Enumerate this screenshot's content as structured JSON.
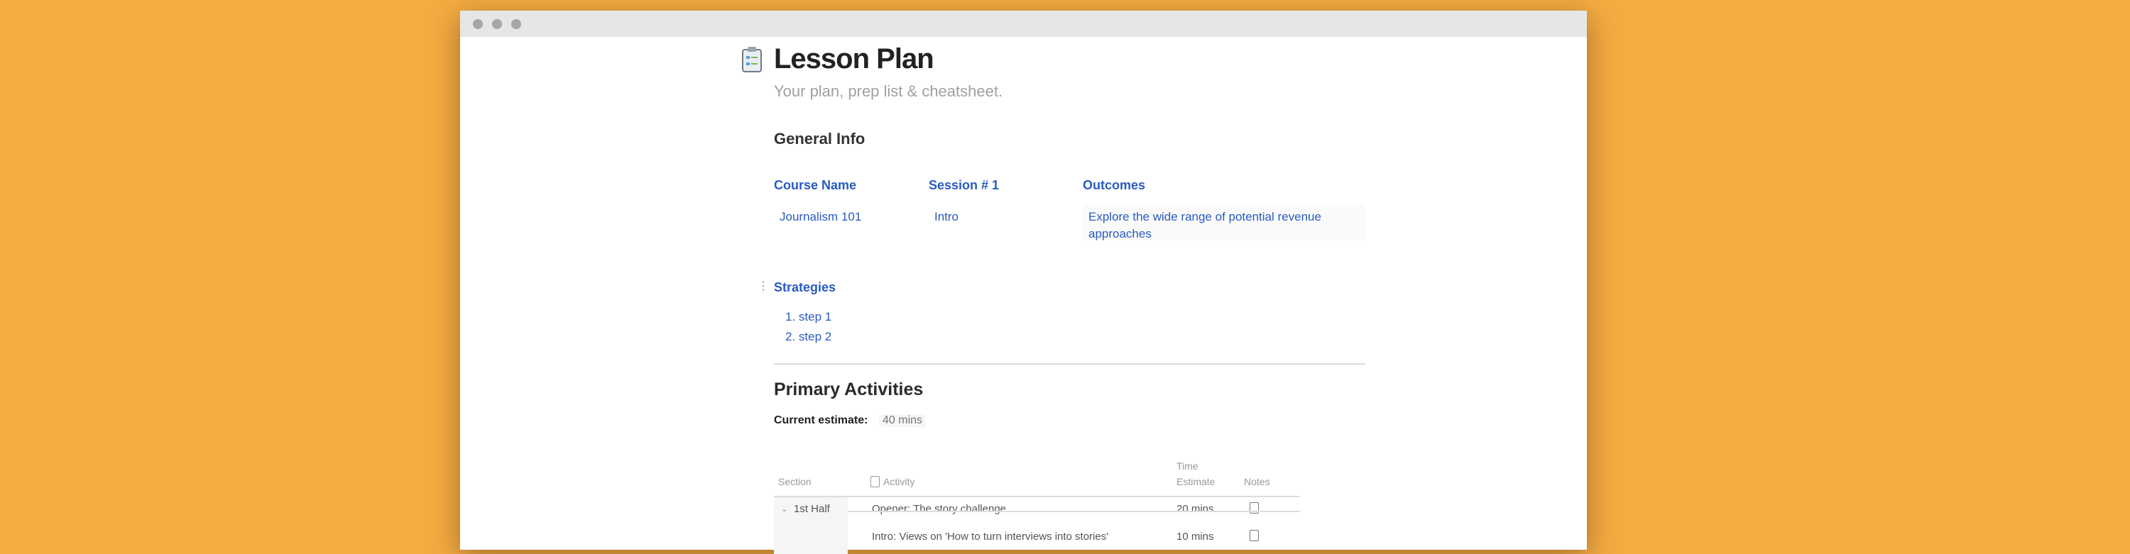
{
  "window": {
    "controls": [
      "close",
      "minimize",
      "maximize"
    ]
  },
  "page": {
    "icon": "clipboard-icon",
    "title": "Lesson Plan",
    "subtitle": "Your plan, prep list & cheatsheet."
  },
  "general_info": {
    "heading": "General Info",
    "columns": [
      {
        "label": "Course Name",
        "value": "Journalism 101"
      },
      {
        "label": "Session # 1",
        "value": "Intro"
      },
      {
        "label": "Outcomes",
        "value_line1": "Explore the wide range of potential revenue",
        "value_line2": "approaches"
      }
    ]
  },
  "strategies": {
    "heading": "Strategies",
    "items": [
      "1.  step 1",
      "2.  step 2"
    ]
  },
  "primary": {
    "heading": "Primary Activities",
    "estimate_label": "Current estimate:",
    "estimate_value": "40 mins",
    "table": {
      "headers": {
        "section": "Section",
        "activity": "Activity",
        "time_line1": "Time",
        "time_line2": "Estimate",
        "notes": "Notes"
      },
      "group": "1st Half",
      "rows": [
        {
          "activity": "Opener: The story challenge",
          "time": "20 mins",
          "notes_icon": "note-icon"
        },
        {
          "activity": "Intro: Views on 'How to turn interviews into stories'",
          "time": "10 mins",
          "notes_icon": "note-icon"
        }
      ]
    }
  }
}
